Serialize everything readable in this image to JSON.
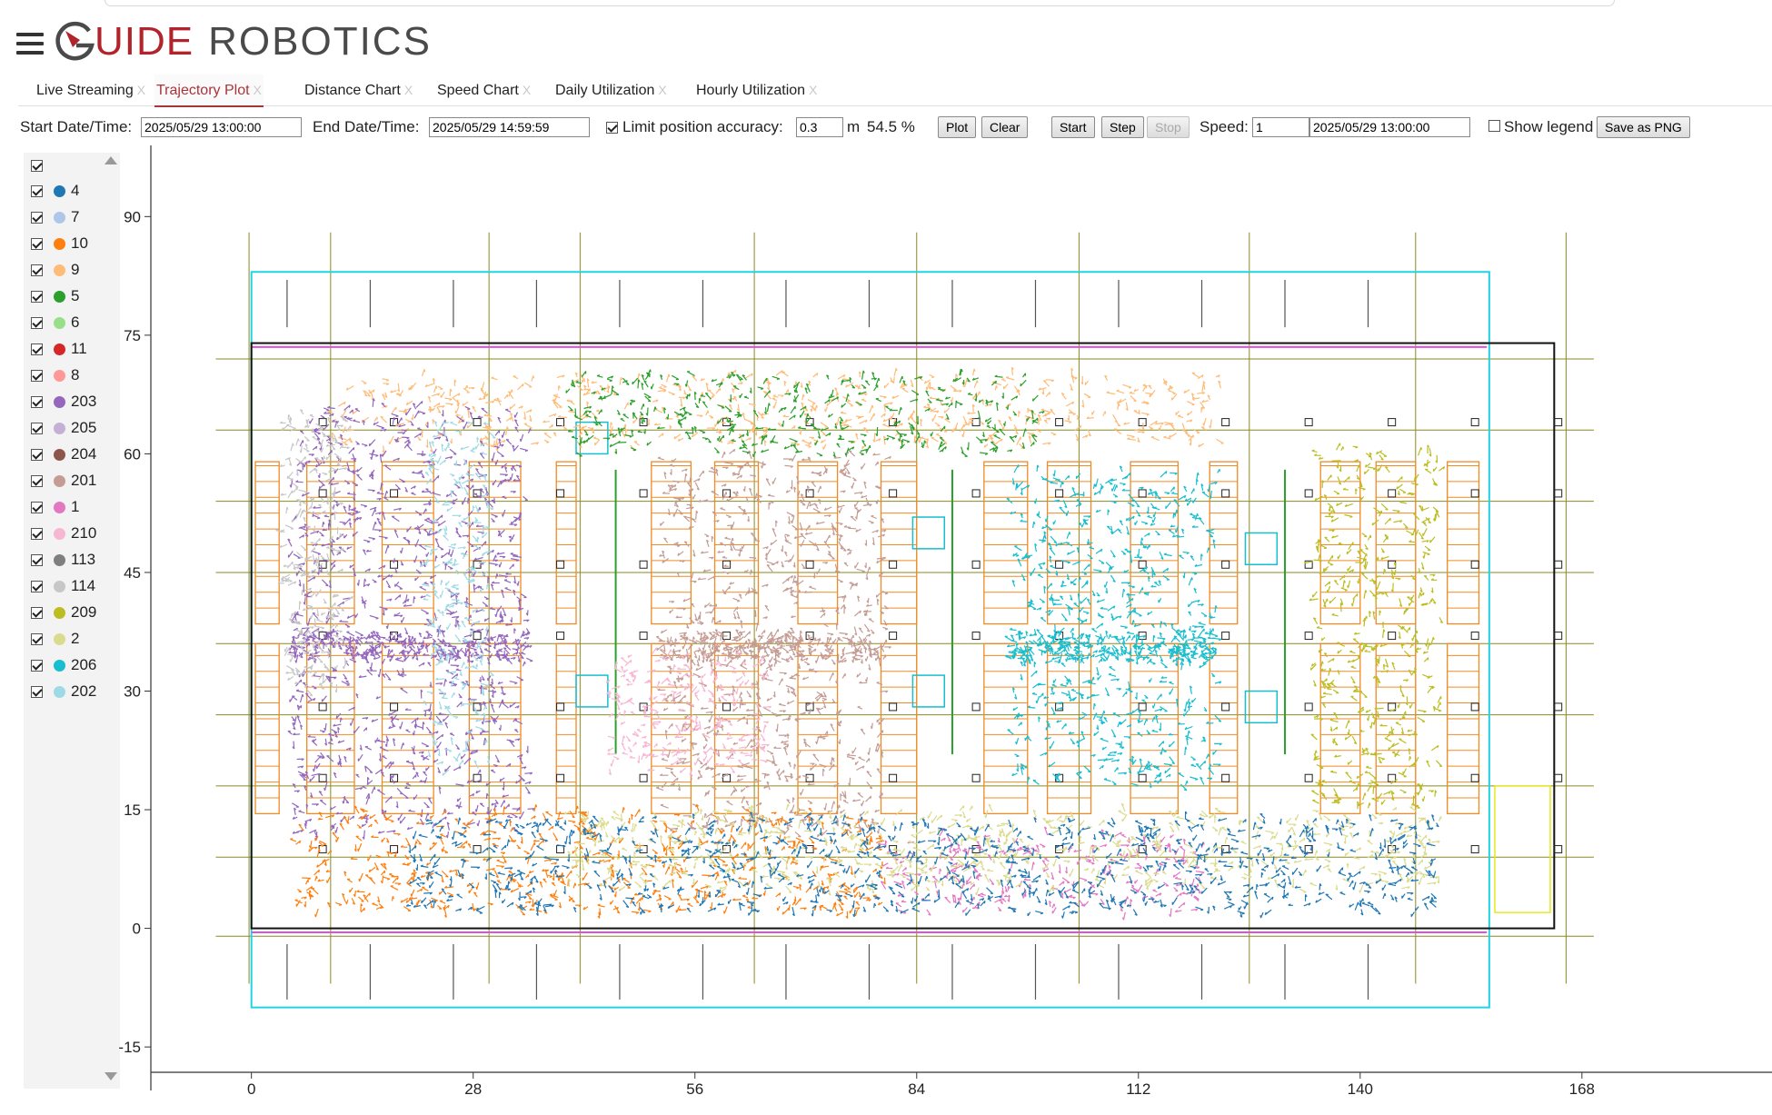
{
  "brand": {
    "name_part1": "UIDE",
    "name_part2": "ROBOTICS",
    "accent": "#b2242b"
  },
  "tabs": [
    {
      "label": "Live Streaming",
      "active": false
    },
    {
      "label": "Trajectory Plot",
      "active": true
    },
    {
      "label": "Distance Chart",
      "active": false
    },
    {
      "label": "Speed Chart",
      "active": false
    },
    {
      "label": "Daily Utilization",
      "active": false
    },
    {
      "label": "Hourly Utilization",
      "active": false
    }
  ],
  "tab_close": "X",
  "controls": {
    "start_label": "Start Date/Time:",
    "start_value": "2025/05/29 13:00:00",
    "end_label": "End Date/Time:",
    "end_value": "2025/05/29 14:59:59",
    "limit_label": "Limit position accuracy:",
    "limit_checked": true,
    "limit_value": "0.3",
    "limit_unit": "m",
    "percent": "54.5 %",
    "plot_btn": "Plot",
    "clear_btn": "Clear",
    "start_btn": "Start",
    "step_btn": "Step",
    "stop_btn": "Stop",
    "speed_label": "Speed:",
    "speed_value": "1",
    "time_value": "2025/05/29 13:00:00",
    "show_legend_label": "Show legend",
    "show_legend_checked": false,
    "save_btn": "Save as PNG"
  },
  "legend": [
    {
      "id": "4",
      "color": "#1f77b4"
    },
    {
      "id": "7",
      "color": "#aec7e8"
    },
    {
      "id": "10",
      "color": "#ff7f0e"
    },
    {
      "id": "9",
      "color": "#ffbb78"
    },
    {
      "id": "5",
      "color": "#2ca02c"
    },
    {
      "id": "6",
      "color": "#98df8a"
    },
    {
      "id": "11",
      "color": "#d62728"
    },
    {
      "id": "8",
      "color": "#ff9896"
    },
    {
      "id": "203",
      "color": "#9467bd"
    },
    {
      "id": "205",
      "color": "#c5b0d5"
    },
    {
      "id": "204",
      "color": "#8c564b"
    },
    {
      "id": "201",
      "color": "#c49c94"
    },
    {
      "id": "1",
      "color": "#e377c2"
    },
    {
      "id": "210",
      "color": "#f7b6d2"
    },
    {
      "id": "113",
      "color": "#7f7f7f"
    },
    {
      "id": "114",
      "color": "#c7c7c7"
    },
    {
      "id": "209",
      "color": "#bcbd22"
    },
    {
      "id": "2",
      "color": "#dbdb8d"
    },
    {
      "id": "206",
      "color": "#17becf"
    },
    {
      "id": "202",
      "color": "#9edae5"
    }
  ],
  "chart_data": {
    "type": "scatter",
    "x_ticks": [
      0,
      28,
      56,
      84,
      112,
      140,
      168
    ],
    "y_ticks": [
      90,
      75,
      60,
      45,
      30,
      15,
      0,
      -15
    ],
    "xlim": [
      -12.7,
      192
    ],
    "ylim": [
      -20.5,
      99
    ],
    "grid": true,
    "legend_visible": false,
    "series": [
      {
        "name": "9",
        "color": "#ffbb78",
        "regions": [
          [
            10,
            123,
            61,
            70
          ]
        ]
      },
      {
        "name": "203",
        "color": "#9467bd",
        "regions": [
          [
            5,
            35,
            12,
            66
          ],
          [
            5,
            35,
            34,
            37
          ]
        ]
      },
      {
        "name": "201",
        "color": "#c49c94",
        "regions": [
          [
            52,
            80,
            12,
            60
          ],
          [
            52,
            80,
            34,
            37
          ]
        ]
      },
      {
        "name": "206",
        "color": "#17becf",
        "regions": [
          [
            96,
            122,
            18,
            58
          ],
          [
            96,
            122,
            34,
            37
          ]
        ]
      },
      {
        "name": "209",
        "color": "#bcbd22",
        "regions": [
          [
            134,
            150,
            15,
            61
          ]
        ]
      },
      {
        "name": "10",
        "color": "#ff7f0e",
        "regions": [
          [
            5,
            80,
            2,
            15
          ]
        ]
      },
      {
        "name": "1",
        "color": "#e377c2",
        "regions": [
          [
            80,
            120,
            2,
            12
          ]
        ]
      },
      {
        "name": "2",
        "color": "#dbdb8d",
        "regions": [
          [
            40,
            150,
            5,
            15
          ]
        ]
      },
      {
        "name": "4",
        "color": "#1f77b4",
        "regions": [
          [
            20,
            150,
            2,
            14
          ]
        ]
      },
      {
        "name": "114",
        "color": "#c7c7c7",
        "regions": [
          [
            4,
            12,
            30,
            65
          ]
        ]
      },
      {
        "name": "202",
        "color": "#9edae5",
        "regions": [
          [
            22,
            30,
            20,
            64
          ]
        ]
      },
      {
        "name": "210",
        "color": "#f7b6d2",
        "regions": [
          [
            45,
            65,
            20,
            35
          ]
        ]
      },
      {
        "name": "5",
        "color": "#2ca02c",
        "regions": [
          [
            40,
            100,
            60,
            70
          ]
        ]
      }
    ]
  }
}
